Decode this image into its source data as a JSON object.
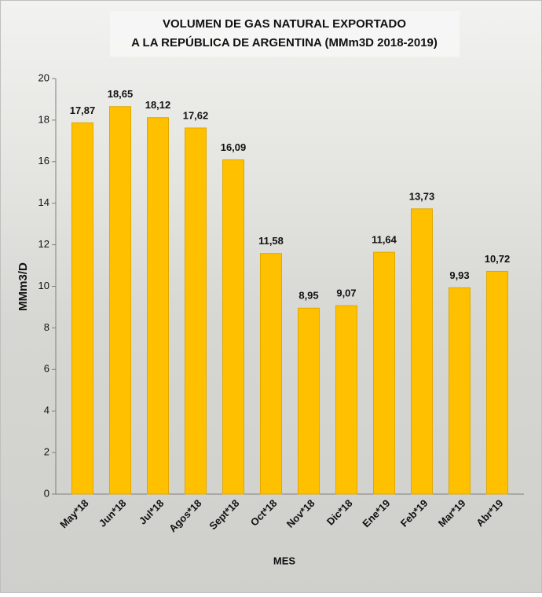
{
  "chart_data": {
    "type": "bar",
    "title": [
      "VOLUMEN DE GAS NATURAL EXPORTADO",
      "A LA REPÚBLICA DE ARGENTINA (MMm3D 2018-2019)"
    ],
    "x_label": "MES",
    "y_label": "MMm3/D",
    "categories": [
      "May*18",
      "Jun*18",
      "Jul*18",
      "Agos*18",
      "Sept*18",
      "Oct*18",
      "Nov*18",
      "Dic*18",
      "Ene*19",
      "Feb*19",
      "Mar*19",
      "Abr*19"
    ],
    "values": [
      17.87,
      18.65,
      18.12,
      17.62,
      16.09,
      11.58,
      8.95,
      9.07,
      11.64,
      13.73,
      9.93,
      10.72
    ],
    "value_labels": [
      "17,87",
      "18,65",
      "18,12",
      "17,62",
      "16,09",
      "11,58",
      "8,95",
      "9,07",
      "11,64",
      "13,73",
      "9,93",
      "10,72"
    ],
    "color": "#ffc000",
    "ylim": [
      0,
      20
    ],
    "yticks": [
      0,
      2,
      4,
      6,
      8,
      10,
      12,
      14,
      16,
      18,
      20
    ]
  }
}
